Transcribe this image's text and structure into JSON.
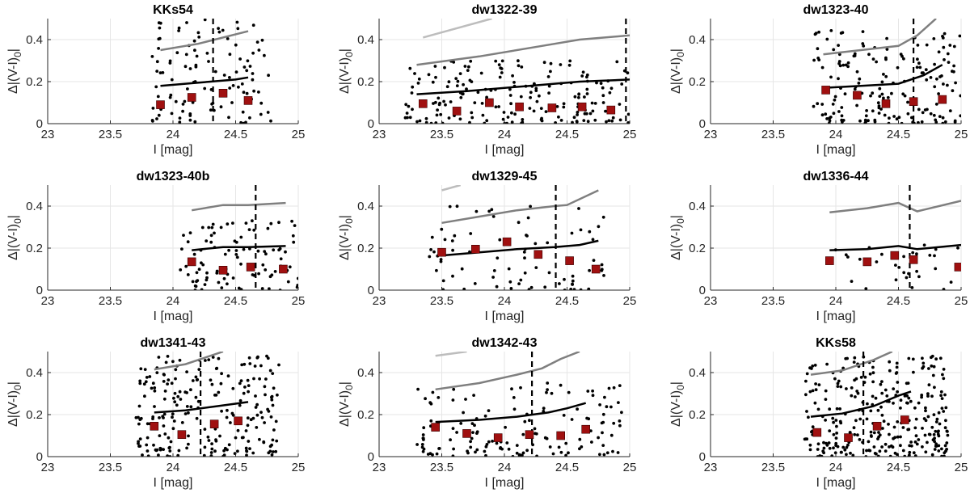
{
  "figure": {
    "xlabel": "I [mag]",
    "ylabel_main": "Δ|(V-I)",
    "ylabel_sub": "0",
    "ylabel_end": "|"
  },
  "chart_data": [
    {
      "type": "scatter",
      "title": "KKs54",
      "xlim": [
        23,
        25
      ],
      "ylim": [
        0,
        0.5
      ],
      "xticks": [
        "23",
        "23.5",
        "24",
        "24.5",
        "25"
      ],
      "yticks": [
        "0",
        "0.2",
        "0.4"
      ],
      "grid": true,
      "vline": 24.32,
      "binned_points": [
        [
          23.9,
          0.09
        ],
        [
          24.15,
          0.125
        ],
        [
          24.4,
          0.145
        ],
        [
          24.6,
          0.11
        ]
      ],
      "median_line": [
        [
          23.9,
          0.18
        ],
        [
          24.1,
          0.19
        ],
        [
          24.3,
          0.2
        ],
        [
          24.5,
          0.21
        ],
        [
          24.6,
          0.22
        ]
      ],
      "error_line_dark": [
        [
          23.9,
          0.35
        ],
        [
          24.2,
          0.38
        ],
        [
          24.6,
          0.44
        ]
      ],
      "error_line_light": [],
      "stars": {
        "xrange": [
          23.8,
          24.8
        ],
        "ymax": 0.5,
        "count": 110,
        "seed": 11
      }
    },
    {
      "type": "scatter",
      "title": "dw1322-39",
      "xlim": [
        23,
        25
      ],
      "ylim": [
        0,
        0.5
      ],
      "xticks": [
        "23",
        "23.5",
        "24",
        "24.5",
        "25"
      ],
      "yticks": [
        "0",
        "0.2",
        "0.4"
      ],
      "grid": true,
      "vline": 24.97,
      "binned_points": [
        [
          23.35,
          0.095
        ],
        [
          23.62,
          0.06
        ],
        [
          23.88,
          0.1
        ],
        [
          24.12,
          0.08
        ],
        [
          24.38,
          0.075
        ],
        [
          24.62,
          0.08
        ],
        [
          24.85,
          0.065
        ]
      ],
      "median_line": [
        [
          23.3,
          0.14
        ],
        [
          23.7,
          0.155
        ],
        [
          24.2,
          0.18
        ],
        [
          24.6,
          0.2
        ],
        [
          25.0,
          0.21
        ]
      ],
      "error_line_dark": [
        [
          23.3,
          0.28
        ],
        [
          23.8,
          0.32
        ],
        [
          24.3,
          0.37
        ],
        [
          24.6,
          0.4
        ],
        [
          25.0,
          0.42
        ]
      ],
      "error_line_light": [
        [
          23.35,
          0.41
        ],
        [
          23.9,
          0.5
        ]
      ],
      "stars": {
        "xrange": [
          23.2,
          25.0
        ],
        "ymax": 0.3,
        "count": 190,
        "seed": 22
      }
    },
    {
      "type": "scatter",
      "title": "dw1323-40",
      "xlim": [
        23,
        25
      ],
      "ylim": [
        0,
        0.5
      ],
      "xticks": [
        "23",
        "23.5",
        "24",
        "24.5",
        "25"
      ],
      "yticks": [
        "0",
        "0.2",
        "0.4"
      ],
      "grid": true,
      "vline": 24.62,
      "binned_points": [
        [
          23.92,
          0.16
        ],
        [
          24.17,
          0.135
        ],
        [
          24.4,
          0.095
        ],
        [
          24.62,
          0.105
        ],
        [
          24.85,
          0.115
        ]
      ],
      "median_line": [
        [
          23.9,
          0.17
        ],
        [
          24.2,
          0.18
        ],
        [
          24.5,
          0.19
        ],
        [
          24.7,
          0.23
        ],
        [
          24.85,
          0.28
        ]
      ],
      "error_line_dark": [
        [
          23.9,
          0.33
        ],
        [
          24.2,
          0.35
        ],
        [
          24.5,
          0.37
        ],
        [
          24.65,
          0.42
        ],
        [
          24.8,
          0.5
        ]
      ],
      "error_line_light": [],
      "stars": {
        "xrange": [
          23.8,
          25.0
        ],
        "ymax": 0.45,
        "count": 170,
        "seed": 33
      }
    },
    {
      "type": "scatter",
      "title": "dw1323-40b",
      "xlim": [
        23,
        25
      ],
      "ylim": [
        0,
        0.5
      ],
      "xticks": [
        "23",
        "23.5",
        "24",
        "24.5",
        "25"
      ],
      "yticks": [
        "0",
        "0.2",
        "0.4"
      ],
      "grid": true,
      "vline": 24.66,
      "binned_points": [
        [
          24.15,
          0.135
        ],
        [
          24.4,
          0.095
        ],
        [
          24.62,
          0.11
        ],
        [
          24.88,
          0.1
        ]
      ],
      "median_line": [
        [
          24.15,
          0.19
        ],
        [
          24.4,
          0.205
        ],
        [
          24.6,
          0.205
        ],
        [
          24.9,
          0.21
        ]
      ],
      "error_line_dark": [
        [
          24.15,
          0.38
        ],
        [
          24.4,
          0.405
        ],
        [
          24.6,
          0.405
        ],
        [
          24.9,
          0.415
        ]
      ],
      "error_line_light": [],
      "stars": {
        "xrange": [
          24.05,
          25.0
        ],
        "ymax": 0.35,
        "count": 95,
        "seed": 44
      }
    },
    {
      "type": "scatter",
      "title": "dw1329-45",
      "xlim": [
        23,
        25
      ],
      "ylim": [
        0,
        0.5
      ],
      "xticks": [
        "23",
        "23.5",
        "24",
        "24.5",
        "25"
      ],
      "yticks": [
        "0",
        "0.2",
        "0.4"
      ],
      "grid": true,
      "vline": 24.41,
      "binned_points": [
        [
          23.5,
          0.18
        ],
        [
          23.77,
          0.195
        ],
        [
          24.02,
          0.23
        ],
        [
          24.27,
          0.17
        ],
        [
          24.52,
          0.14
        ],
        [
          24.73,
          0.1
        ]
      ],
      "median_line": [
        [
          23.5,
          0.165
        ],
        [
          23.8,
          0.18
        ],
        [
          24.1,
          0.195
        ],
        [
          24.4,
          0.205
        ],
        [
          24.6,
          0.215
        ],
        [
          24.75,
          0.235
        ]
      ],
      "error_line_dark": [
        [
          23.5,
          0.32
        ],
        [
          23.8,
          0.35
        ],
        [
          24.1,
          0.38
        ],
        [
          24.4,
          0.4
        ],
        [
          24.5,
          0.405
        ],
        [
          24.75,
          0.475
        ]
      ],
      "error_line_light": [
        [
          23.5,
          0.475
        ],
        [
          23.65,
          0.5
        ]
      ],
      "stars": {
        "xrange": [
          23.4,
          24.8
        ],
        "ymax": 0.42,
        "count": 80,
        "seed": 55
      }
    },
    {
      "type": "scatter",
      "title": "dw1336-44",
      "xlim": [
        23,
        25
      ],
      "ylim": [
        0,
        0.5
      ],
      "xticks": [
        "23",
        "23.5",
        "24",
        "24.5",
        "25"
      ],
      "yticks": [
        "0",
        "0.2",
        "0.4"
      ],
      "grid": true,
      "vline": 24.59,
      "binned_points": [
        [
          23.95,
          0.14
        ],
        [
          24.25,
          0.135
        ],
        [
          24.47,
          0.165
        ],
        [
          24.62,
          0.145
        ],
        [
          24.98,
          0.11
        ]
      ],
      "median_line": [
        [
          23.95,
          0.19
        ],
        [
          24.25,
          0.195
        ],
        [
          24.5,
          0.21
        ],
        [
          24.65,
          0.195
        ],
        [
          25.0,
          0.215
        ]
      ],
      "error_line_dark": [
        [
          23.95,
          0.37
        ],
        [
          24.25,
          0.39
        ],
        [
          24.5,
          0.415
        ],
        [
          24.65,
          0.375
        ],
        [
          25.0,
          0.425
        ]
      ],
      "error_line_light": [],
      "stars": {
        "xrange": [
          23.85,
          25.0
        ],
        "ymax": 0.22,
        "count": 30,
        "seed": 66
      }
    },
    {
      "type": "scatter",
      "title": "dw1341-43",
      "xlim": [
        23,
        25
      ],
      "ylim": [
        0,
        0.5
      ],
      "xticks": [
        "23",
        "23.5",
        "24",
        "24.5",
        "25"
      ],
      "yticks": [
        "0",
        "0.2",
        "0.4"
      ],
      "grid": true,
      "vline": 24.22,
      "binned_points": [
        [
          23.85,
          0.145
        ],
        [
          24.07,
          0.105
        ],
        [
          24.33,
          0.155
        ],
        [
          24.52,
          0.17
        ]
      ],
      "median_line": [
        [
          23.85,
          0.21
        ],
        [
          24.1,
          0.22
        ],
        [
          24.35,
          0.24
        ],
        [
          24.6,
          0.26
        ]
      ],
      "error_line_dark": [
        [
          23.85,
          0.415
        ],
        [
          24.1,
          0.44
        ],
        [
          24.3,
          0.48
        ],
        [
          24.4,
          0.5
        ]
      ],
      "error_line_light": [],
      "stars": {
        "xrange": [
          23.7,
          24.85
        ],
        "ymax": 0.48,
        "count": 230,
        "seed": 77
      }
    },
    {
      "type": "scatter",
      "title": "dw1342-43",
      "xlim": [
        23,
        25
      ],
      "ylim": [
        0,
        0.5
      ],
      "xticks": [
        "23",
        "23.5",
        "24",
        "24.5",
        "25"
      ],
      "yticks": [
        "0",
        "0.2",
        "0.4"
      ],
      "grid": true,
      "vline": 24.22,
      "binned_points": [
        [
          23.45,
          0.14
        ],
        [
          23.7,
          0.11
        ],
        [
          23.95,
          0.09
        ],
        [
          24.2,
          0.105
        ],
        [
          24.45,
          0.1
        ],
        [
          24.65,
          0.13
        ]
      ],
      "median_line": [
        [
          23.45,
          0.165
        ],
        [
          23.8,
          0.175
        ],
        [
          24.1,
          0.19
        ],
        [
          24.35,
          0.21
        ],
        [
          24.5,
          0.23
        ],
        [
          24.65,
          0.255
        ]
      ],
      "error_line_dark": [
        [
          23.45,
          0.32
        ],
        [
          23.8,
          0.35
        ],
        [
          24.1,
          0.39
        ],
        [
          24.3,
          0.42
        ],
        [
          24.45,
          0.465
        ],
        [
          24.6,
          0.5
        ]
      ],
      "error_line_light": [
        [
          23.45,
          0.48
        ],
        [
          23.7,
          0.5
        ]
      ],
      "stars": {
        "xrange": [
          23.3,
          24.95
        ],
        "ymax": 0.35,
        "count": 140,
        "seed": 88
      }
    },
    {
      "type": "scatter",
      "title": "KKs58",
      "xlim": [
        23,
        25
      ],
      "ylim": [
        0,
        0.5
      ],
      "xticks": [
        "23",
        "23.5",
        "24",
        "24.5",
        "25"
      ],
      "yticks": [
        "0",
        "0.2",
        "0.4"
      ],
      "grid": true,
      "vline": 24.22,
      "binned_points": [
        [
          23.85,
          0.115
        ],
        [
          24.1,
          0.09
        ],
        [
          24.33,
          0.145
        ],
        [
          24.55,
          0.175
        ]
      ],
      "median_line": [
        [
          23.8,
          0.19
        ],
        [
          24.05,
          0.205
        ],
        [
          24.3,
          0.24
        ],
        [
          24.5,
          0.29
        ],
        [
          24.6,
          0.31
        ]
      ],
      "error_line_dark": [
        [
          23.8,
          0.39
        ],
        [
          24.05,
          0.41
        ],
        [
          24.3,
          0.46
        ],
        [
          24.45,
          0.5
        ]
      ],
      "error_line_light": [],
      "stars": {
        "xrange": [
          23.75,
          24.9
        ],
        "ymax": 0.48,
        "count": 300,
        "seed": 99
      }
    }
  ]
}
